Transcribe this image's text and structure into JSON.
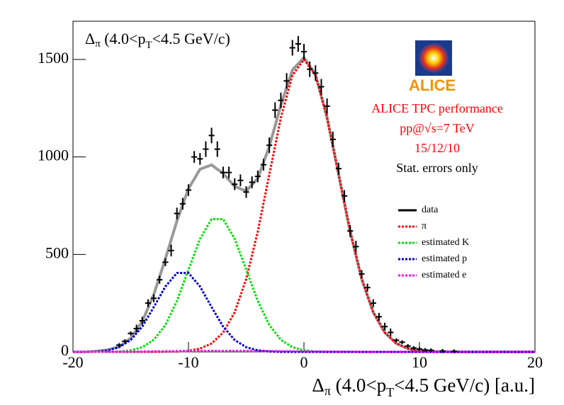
{
  "chart_data": {
    "type": "line",
    "title": [
      "Δ",
      "π",
      " (4.0<p",
      "T",
      "<4.5 GeV/c)"
    ],
    "x_label": [
      "Δ",
      "π",
      " (4.0<p",
      "T",
      "<4.5 GeV/c) [a.u.]"
    ],
    "annotations": [
      "ALICE TPC performance",
      "pp@√s=7 TeV",
      "15/12/10",
      "Stat. errors only"
    ],
    "annotation_colors": [
      "#ff0000",
      "#ff0000",
      "#ff0000",
      "#000000"
    ],
    "logo_text": "ALICE",
    "xlim": [
      -20,
      20
    ],
    "ylim": [
      0,
      1696
    ],
    "xticks": [
      -20,
      -10,
      0,
      10,
      20
    ],
    "yticks": [
      0,
      500,
      1000,
      1500
    ],
    "x": [
      -20,
      -19,
      -18,
      -17,
      -16,
      -15,
      -14,
      -13,
      -12,
      -11,
      -10,
      -9,
      -8,
      -7,
      -6,
      -5,
      -4,
      -3,
      -2,
      -1,
      0,
      1,
      2,
      3,
      4,
      5,
      6,
      7,
      8,
      9,
      10,
      11,
      12,
      13,
      14,
      15,
      16,
      17,
      18,
      19,
      20
    ],
    "series": [
      {
        "color": "#999999",
        "style": "solid",
        "values": [
          0,
          0,
          3,
          10,
          27,
          71,
          156,
          295,
          477,
          672,
          837,
          937,
          959,
          915,
          849,
          825,
          890,
          1054,
          1266,
          1446,
          1510,
          1423,
          1203,
          911,
          618,
          374,
          203,
          99,
          43,
          17,
          6,
          2,
          1,
          0,
          0,
          0,
          0,
          0,
          0,
          0,
          0
        ]
      },
      {
        "name": "π",
        "color": "#ff0000",
        "style": "dotted",
        "values": [
          0,
          0,
          0,
          0,
          0,
          0,
          0,
          0,
          1,
          2,
          6,
          17,
          43,
          99,
          203,
          374,
          617,
          910,
          1201,
          1419,
          1500,
          1419,
          1201,
          910,
          617,
          374,
          203,
          99,
          43,
          17,
          6,
          2,
          1,
          0,
          0,
          0,
          0,
          0,
          0,
          0,
          0
        ]
      },
      {
        "name": "estimated K",
        "color": "#00e000",
        "style": "dotted",
        "values": [
          0,
          0,
          0,
          1,
          2,
          8,
          24,
          62,
          138,
          261,
          422,
          580,
          681,
          681,
          580,
          422,
          261,
          138,
          62,
          24,
          8,
          2,
          1,
          0,
          0,
          0,
          0,
          0,
          0,
          0,
          0,
          0,
          0,
          0,
          0,
          0,
          0,
          0,
          0,
          0,
          0
        ]
      },
      {
        "name": "estimated p",
        "color": "#0000d0",
        "style": "dotted",
        "values": [
          0,
          0,
          2,
          8,
          24,
          61,
          130,
          230,
          335,
          405,
          405,
          335,
          230,
          130,
          61,
          24,
          8,
          2,
          0,
          0,
          0,
          0,
          0,
          0,
          0,
          0,
          0,
          0,
          0,
          0,
          0,
          0,
          0,
          0,
          0,
          0,
          0,
          0,
          0,
          0,
          0
        ]
      },
      {
        "name": "estimated e",
        "color": "#ff00ff",
        "style": "dotted",
        "values": [
          0,
          0,
          1,
          1,
          1,
          2,
          2,
          3,
          3,
          4,
          4,
          5,
          5,
          5,
          5,
          5,
          4,
          4,
          3,
          3,
          2,
          2,
          1,
          1,
          1,
          0,
          0,
          0,
          0,
          0,
          0,
          0,
          0,
          0,
          0,
          0,
          0,
          0,
          0,
          0,
          0
        ]
      }
    ],
    "points": {
      "name": "data",
      "color": "#000000",
      "x": [
        -16,
        -15.5,
        -15,
        -14.5,
        -14,
        -13.5,
        -13,
        -12.5,
        -12,
        -11.5,
        -11,
        -10.5,
        -10,
        -9.5,
        -9,
        -8.5,
        -8,
        -7.5,
        -7,
        -6.5,
        -6,
        -5.5,
        -5,
        -4.5,
        -4,
        -3.5,
        -3,
        -2.5,
        -2,
        -1.5,
        -1,
        -0.5,
        0,
        0.5,
        1,
        1.5,
        2,
        2.5,
        3,
        3.5,
        4,
        4.5,
        5,
        5.5,
        6,
        6.5,
        7,
        7.5,
        8,
        8.5,
        9,
        9.5,
        10,
        10.5,
        11,
        12,
        13
      ],
      "values": [
        35,
        55,
        95,
        120,
        160,
        250,
        275,
        370,
        460,
        520,
        710,
        760,
        830,
        1000,
        990,
        1040,
        1110,
        1040,
        920,
        920,
        860,
        880,
        820,
        870,
        900,
        960,
        1060,
        1240,
        1290,
        1390,
        1560,
        1580,
        1540,
        1450,
        1430,
        1360,
        1260,
        1090,
        940,
        800,
        620,
        540,
        400,
        330,
        250,
        180,
        130,
        100,
        60,
        50,
        30,
        20,
        15,
        10,
        8,
        5,
        3
      ],
      "errors": [
        10,
        10,
        10,
        20,
        20,
        20,
        20,
        20,
        20,
        30,
        30,
        30,
        30,
        30,
        30,
        40,
        40,
        40,
        30,
        30,
        30,
        30,
        30,
        30,
        30,
        30,
        40,
        40,
        40,
        40,
        40,
        40,
        40,
        40,
        40,
        40,
        40,
        40,
        30,
        30,
        30,
        30,
        20,
        20,
        20,
        20,
        20,
        20,
        10,
        10,
        10,
        10,
        10,
        10,
        10,
        10,
        10
      ]
    },
    "legend_position": "right"
  }
}
